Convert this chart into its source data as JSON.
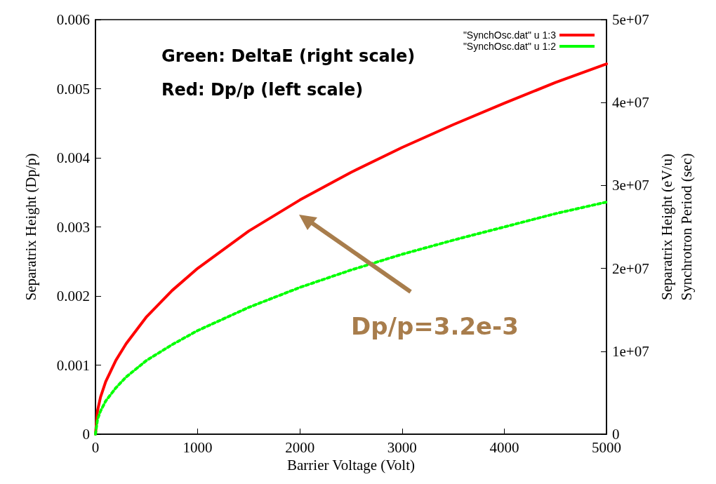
{
  "chart_data": {
    "type": "line",
    "xlabel": "Barrier Voltage (Volt)",
    "ylabel": "Separatrix Height (Dp/p)",
    "y2label": "Separatrix Height (eV/u)\nSynchrotron Period (sec)",
    "x": [
      0,
      20,
      50,
      100,
      200,
      300,
      500,
      750,
      1000,
      1500,
      2000,
      2500,
      3000,
      3500,
      4000,
      4500,
      5000
    ],
    "series": [
      {
        "name": "\"SynchOsc.dat\" u 1:3",
        "color": "#ff0000",
        "line_style": "solid",
        "values": [
          0,
          0.00034,
          0.00054,
          0.00076,
          0.00107,
          0.00131,
          0.0017,
          0.00208,
          0.0024,
          0.00294,
          0.00339,
          0.00379,
          0.00415,
          0.00448,
          0.00479,
          0.00509,
          0.00536
        ]
      },
      {
        "name": "\"SynchOsc.dat\" u 1:2",
        "color": "#00ff00",
        "line_style": "dotted",
        "axis": "y2",
        "values": [
          0,
          1800000,
          2800000,
          4000000,
          5600000,
          6900000,
          8900000,
          10800000,
          12500000,
          15300000,
          17700000,
          19800000,
          21700000,
          23400000,
          25000000,
          26600000,
          28000000
        ]
      }
    ],
    "xlim": [
      0,
      5000
    ],
    "xticks": [
      0,
      1000,
      2000,
      3000,
      4000,
      5000
    ],
    "ylim": [
      0,
      0.006
    ],
    "yticks": [
      0,
      0.001,
      0.002,
      0.003,
      0.004,
      0.005,
      0.006
    ],
    "y2lim": [
      0,
      50000000
    ],
    "y2ticks": [
      0,
      {
        "value": 10000000,
        "label": "1e+07"
      },
      {
        "value": 20000000,
        "label": "2e+07"
      },
      {
        "value": 30000000,
        "label": "3e+07"
      },
      {
        "value": 40000000,
        "label": "4e+07"
      },
      {
        "value": 50000000,
        "label": "5e+07"
      }
    ],
    "grid": false,
    "marker": "none",
    "legend": "top right",
    "annotations": [
      "Green: DeltaE (right scale)",
      "Red: Dp/p (left scale)",
      "Dp/p=3.2e-3"
    ]
  }
}
